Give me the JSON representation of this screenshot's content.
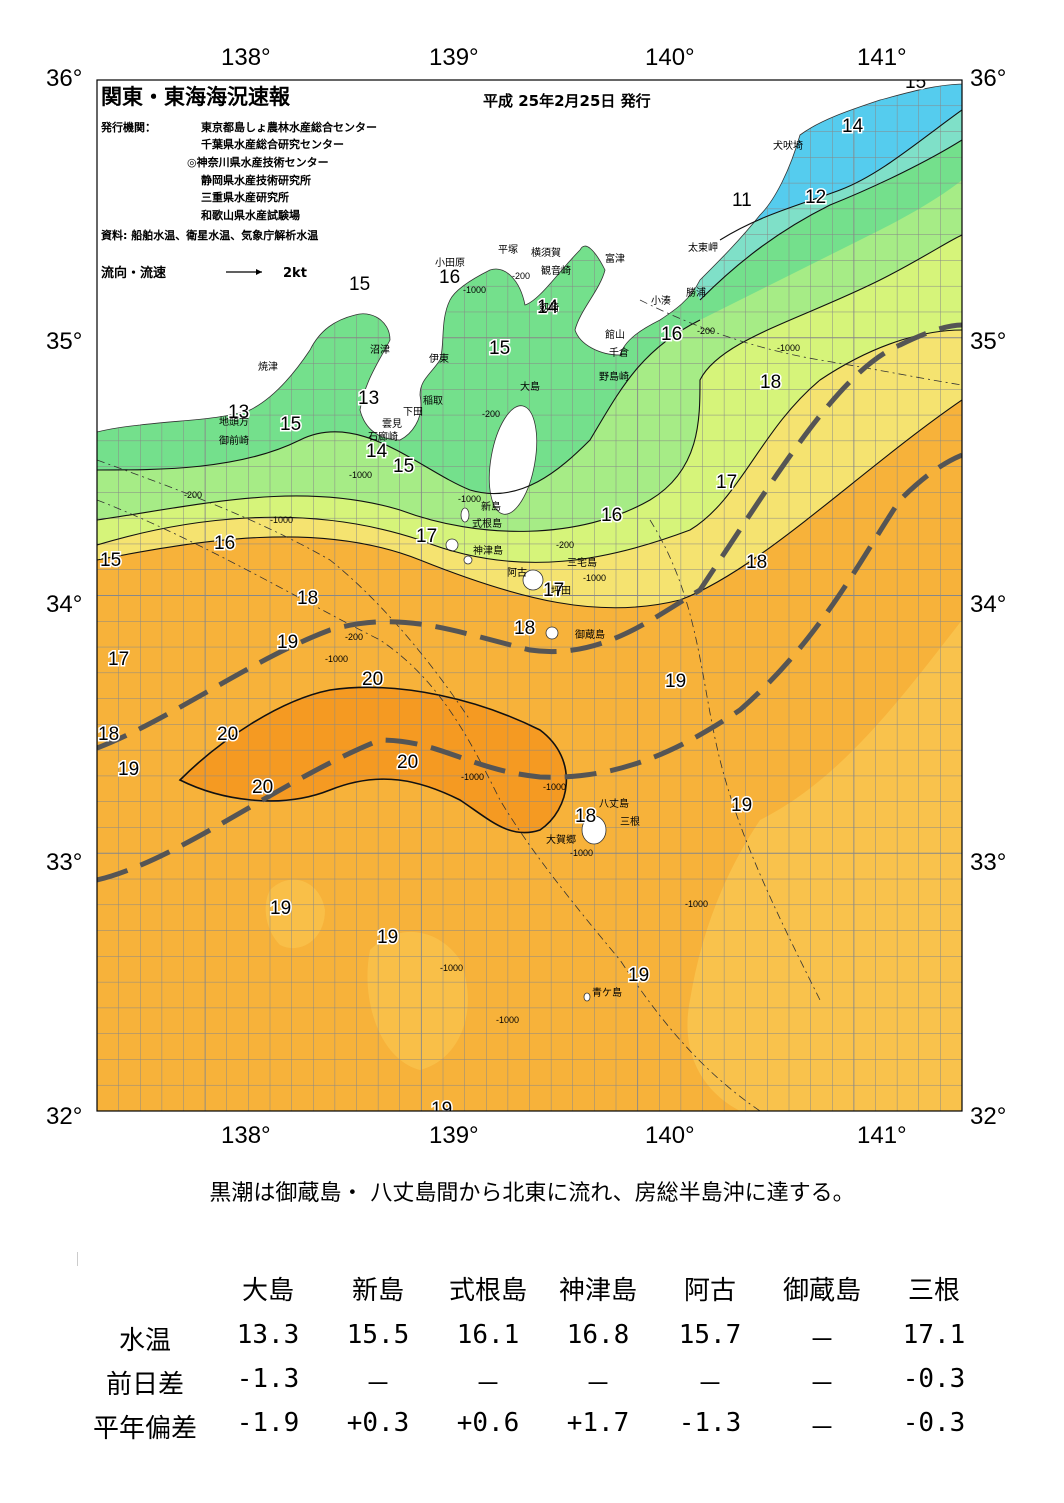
{
  "header": {
    "title": "関東・東海海況速報",
    "date": "平成 25年2月25日 発行",
    "publisher_label": "発行機関：",
    "publishers": [
      "東京都島しょ農林水産総合センター",
      "千葉県水産総合研究センター",
      "◎神奈川県水産技術センター",
      "静岡県水産技術研究所",
      "三重県水産研究所",
      "和歌山県水産試験場"
    ],
    "source": "資料: 船舶水温、衛星水温、気象庁解析水温",
    "flow_label": "流向・流速",
    "flow_scale": "2kt"
  },
  "axes": {
    "longitudes": [
      "138°",
      "139°",
      "140°",
      "141°"
    ],
    "latitudes": [
      "36°",
      "35°",
      "34°",
      "33°",
      "32°"
    ]
  },
  "map": {
    "colors": {
      "t11": "#55ccee",
      "t13": "#7fe0c8",
      "t15": "#74e08c",
      "t16": "#a6ec86",
      "t17": "#d6f47a",
      "t18": "#f5e370",
      "t19": "#f9c24c",
      "t19b": "#f7b23a",
      "t20": "#f59a22",
      "land": "#ffffff",
      "kuroshio": "#555555"
    },
    "isotherm_labels": [
      "15",
      "14",
      "12",
      "11",
      "16",
      "15",
      "14",
      "13",
      "13",
      "15",
      "14",
      "15",
      "15",
      "16",
      "15",
      "18",
      "17",
      "16",
      "17",
      "18",
      "17",
      "16",
      "18",
      "19",
      "17",
      "18",
      "19",
      "18",
      "20",
      "20",
      "20",
      "20",
      "19",
      "19",
      "19",
      "19",
      "19",
      "18",
      "19"
    ],
    "depth_labels": [
      "-200",
      "-1000",
      "-200",
      "-1000",
      "-200",
      "-1000",
      "-200",
      "-1000",
      "-200",
      "-1000",
      "-1000",
      "-1000",
      "-1000",
      "-1000",
      "-1000",
      "-1000",
      "-1000",
      "-200",
      "-1000"
    ],
    "places": [
      "犬吠埼",
      "太東岬",
      "勝浦",
      "小湊",
      "富津",
      "館山",
      "千倉",
      "野島崎",
      "観音崎",
      "横須賀",
      "剱崎",
      "平塚",
      "小田原",
      "伊東",
      "大島",
      "稲取",
      "下田",
      "雲見",
      "石廊崎",
      "沼津",
      "焼津",
      "地頭方",
      "御前崎",
      "新島",
      "式根島",
      "神津島",
      "三宅島",
      "阿古",
      "坪田",
      "御蔵島",
      "八丈島",
      "三根",
      "大賀郷",
      "青ケ島"
    ]
  },
  "summary": "黒潮は御蔵島・ 八丈島間から北東に流れ、房総半島沖に達する。",
  "stats": {
    "columns": [
      "大島",
      "新島",
      "式根島",
      "神津島",
      "阿古",
      "御蔵島",
      "三根"
    ],
    "rows": [
      {
        "label": "水温",
        "values": [
          "13.3",
          "15.5",
          "16.1",
          "16.8",
          "15.7",
          "－",
          "17.1"
        ]
      },
      {
        "label": "前日差",
        "values": [
          "-1.3",
          "－",
          "－",
          "－",
          "－",
          "－",
          "-0.3"
        ]
      },
      {
        "label": "平年偏差",
        "values": [
          "-1.9",
          "+0.3",
          "+0.6",
          "+1.7",
          "-1.3",
          "－",
          "-0.3"
        ]
      }
    ]
  }
}
